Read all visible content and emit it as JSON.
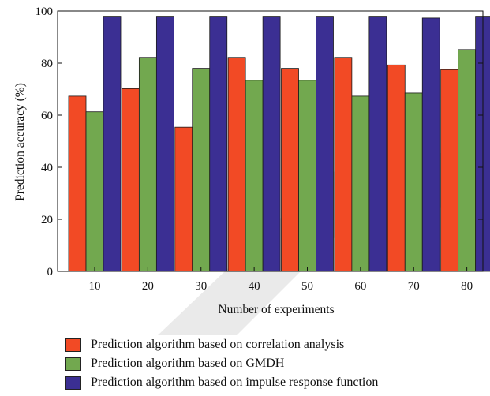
{
  "chart_data": {
    "type": "bar",
    "xlabel": "Number of experiments",
    "ylabel": "Prediction accuracy (%)",
    "ylim": [
      0,
      100
    ],
    "yticks": [
      0,
      20,
      40,
      60,
      80,
      100
    ],
    "categories": [
      "10",
      "20",
      "30",
      "40",
      "50",
      "60",
      "70",
      "80"
    ],
    "series": [
      {
        "name": "Prediction algorithm based on correlation analysis",
        "color": "#f24a25",
        "values": [
          67.3,
          70.2,
          55.4,
          82.2,
          78.0,
          82.2,
          79.3,
          77.5
        ]
      },
      {
        "name": "Prediction algorithm based on GMDH",
        "color": "#72a84f",
        "values": [
          61.3,
          82.2,
          78.0,
          73.4,
          73.4,
          67.3,
          68.5,
          85.2
        ]
      },
      {
        "name": "Prediction algorithm based on impulse response function",
        "color": "#3b2f93",
        "values": [
          98.0,
          98.0,
          98.0,
          98.0,
          98.0,
          98.0,
          97.3,
          98.0
        ]
      }
    ],
    "grid": false,
    "legend_position": "bottom"
  }
}
